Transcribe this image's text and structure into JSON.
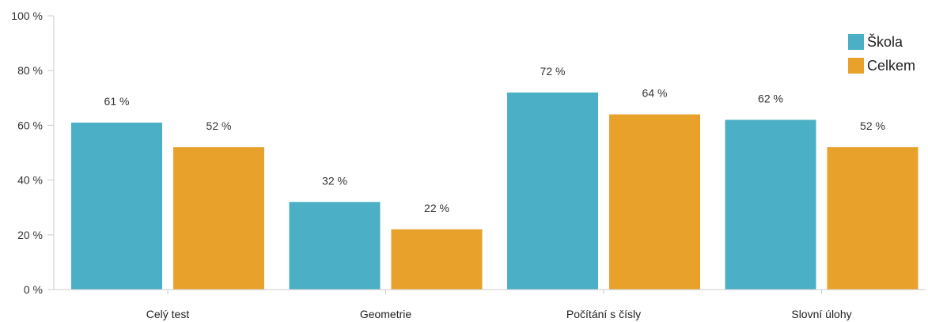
{
  "chart_data": {
    "type": "bar",
    "categories": [
      "Celý test",
      "Geometrie",
      "Počítání s čísly",
      "Slovní úlohy"
    ],
    "series": [
      {
        "name": "Škola",
        "values": [
          61,
          32,
          72,
          62
        ],
        "labels": [
          "61 %",
          "32 %",
          "72 %",
          "62 %"
        ],
        "color": "#4bb0c6"
      },
      {
        "name": "Celkem",
        "values": [
          52,
          22,
          64,
          52
        ],
        "labels": [
          "52 %",
          "22 %",
          "64 %",
          "52 %"
        ],
        "color": "#e8a22b"
      }
    ],
    "ylim": [
      0,
      100
    ],
    "yticks": [
      0,
      20,
      40,
      60,
      80,
      100
    ],
    "ytick_labels": [
      "0 %",
      "20 %",
      "40 %",
      "60 %",
      "80 %",
      "100 %"
    ],
    "grid": false,
    "legend_position": "top-right"
  }
}
